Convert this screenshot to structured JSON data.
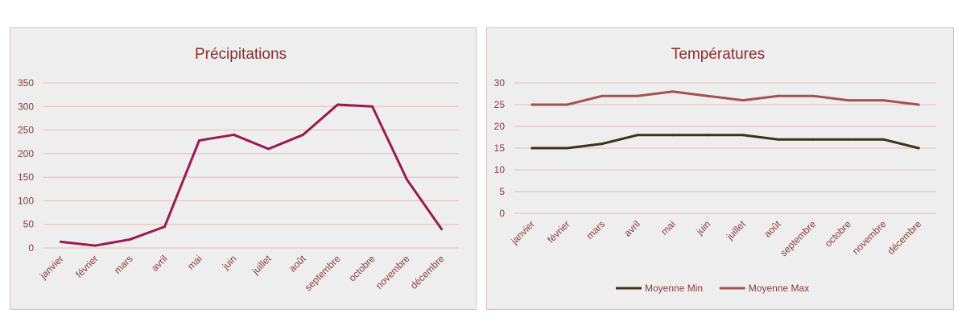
{
  "chart_data": [
    {
      "type": "line",
      "title": "Précipitations",
      "categories": [
        "janvier",
        "février",
        "mars",
        "avril",
        "mai",
        "juin",
        "juillet",
        "août",
        "septembre",
        "octobre",
        "novembre",
        "décembre"
      ],
      "series": [
        {
          "values": [
            13,
            5,
            18,
            45,
            228,
            240,
            210,
            240,
            304,
            300,
            145,
            40
          ],
          "color": "#9b1b4f"
        }
      ],
      "yticks": [
        "0",
        "50",
        "100",
        "150",
        "200",
        "250",
        "300",
        "350"
      ],
      "ylim": [
        0,
        350
      ],
      "grid": true,
      "legend": "none"
    },
    {
      "type": "line",
      "title": "Températures",
      "categories": [
        "janvier",
        "février",
        "mars",
        "avril",
        "mai",
        "juin",
        "juillet",
        "août",
        "septembre",
        "octobre",
        "novembre",
        "décembre"
      ],
      "series": [
        {
          "name": "Moyenne Min",
          "values": [
            15,
            15,
            16,
            18,
            18,
            18,
            18,
            17,
            17,
            17,
            17,
            15
          ],
          "color": "#3d3314"
        },
        {
          "name": "Moyenne Max",
          "values": [
            25,
            25,
            27,
            27,
            28,
            27,
            26,
            27,
            27,
            26,
            26,
            25
          ],
          "color": "#a2534f"
        }
      ],
      "yticks": [
        "0",
        "5",
        "10",
        "15",
        "20",
        "25",
        "30"
      ],
      "ylim": [
        0,
        30
      ],
      "grid": true,
      "legend": "bottom"
    }
  ]
}
